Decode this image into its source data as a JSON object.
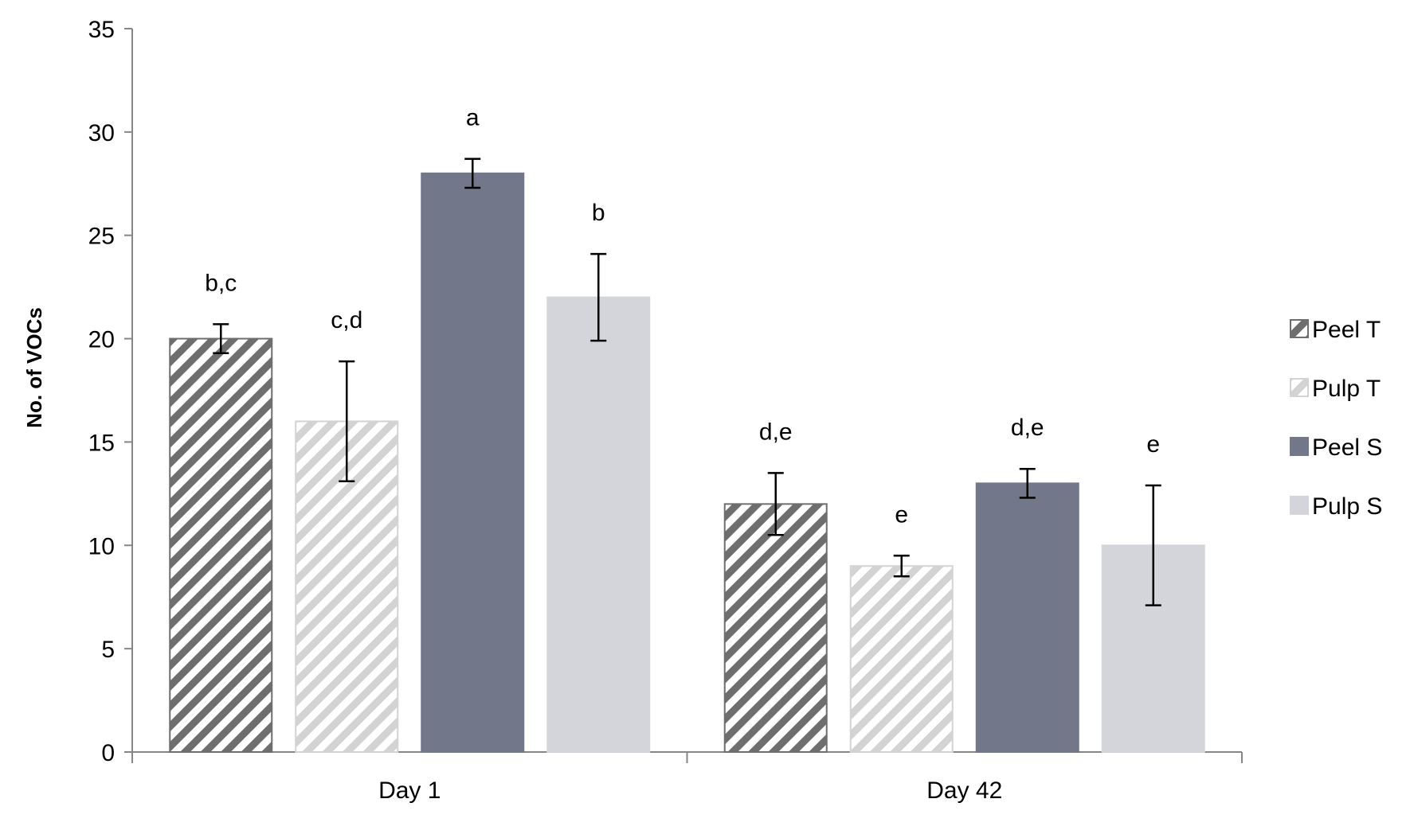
{
  "chart_data": {
    "type": "bar",
    "title": "",
    "xlabel": "",
    "ylabel": "No. of VOCs",
    "ylim": [
      0,
      35
    ],
    "yticks": [
      0,
      5,
      10,
      15,
      20,
      25,
      30,
      35
    ],
    "grid": false,
    "legend_position": "right",
    "categories": [
      "Day 1",
      "Day 42"
    ],
    "series": [
      {
        "name": "Peel T",
        "values": [
          20,
          12
        ],
        "errors": [
          0.7,
          1.5
        ],
        "labels": [
          "b,c",
          "d,e"
        ],
        "color": "#6e6e6e",
        "pattern": "hatch-dark"
      },
      {
        "name": "Pulp T",
        "values": [
          16,
          9
        ],
        "errors": [
          2.9,
          0.5
        ],
        "labels": [
          "c,d",
          "e"
        ],
        "color": "#d3d3d3",
        "pattern": "hatch-light"
      },
      {
        "name": "Peel S",
        "values": [
          28,
          13
        ],
        "errors": [
          0.7,
          0.7
        ],
        "labels": [
          "a",
          "d,e"
        ],
        "color": "#72778a",
        "pattern": "solid"
      },
      {
        "name": "Pulp S",
        "values": [
          22,
          10
        ],
        "errors": [
          2.1,
          2.9
        ],
        "labels": [
          "b",
          "e"
        ],
        "color": "#d4d5da",
        "pattern": "solid"
      }
    ]
  }
}
